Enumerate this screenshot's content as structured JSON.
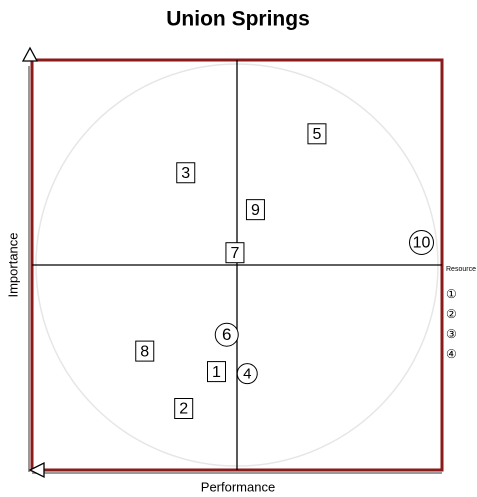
{
  "chart_data": {
    "type": "quadrant",
    "title": "Union Springs",
    "xlabel": "Performance",
    "ylabel": "Importance",
    "xlim": [
      -1,
      1
    ],
    "ylim": [
      -1,
      1
    ],
    "frame_color": "#8b1a1a",
    "points": [
      {
        "label": "1",
        "x": -0.1,
        "y": -0.52,
        "shape": "square"
      },
      {
        "label": "2",
        "x": -0.26,
        "y": -0.7,
        "shape": "square"
      },
      {
        "label": "3",
        "x": -0.25,
        "y": 0.45,
        "shape": "square"
      },
      {
        "label": "4",
        "x": 0.05,
        "y": -0.53,
        "shape": "circle"
      },
      {
        "label": "5",
        "x": 0.39,
        "y": 0.64,
        "shape": "square"
      },
      {
        "label": "6",
        "x": -0.05,
        "y": -0.34,
        "shape": "circle"
      },
      {
        "label": "7",
        "x": -0.01,
        "y": 0.06,
        "shape": "square"
      },
      {
        "label": "8",
        "x": -0.45,
        "y": -0.42,
        "shape": "square"
      },
      {
        "label": "9",
        "x": 0.09,
        "y": 0.27,
        "shape": "square"
      },
      {
        "label": "10",
        "x": 0.9,
        "y": 0.11,
        "shape": "circle"
      }
    ],
    "legend": {
      "title": "Resource",
      "items": [
        "①",
        "②",
        "③",
        "④"
      ]
    }
  }
}
